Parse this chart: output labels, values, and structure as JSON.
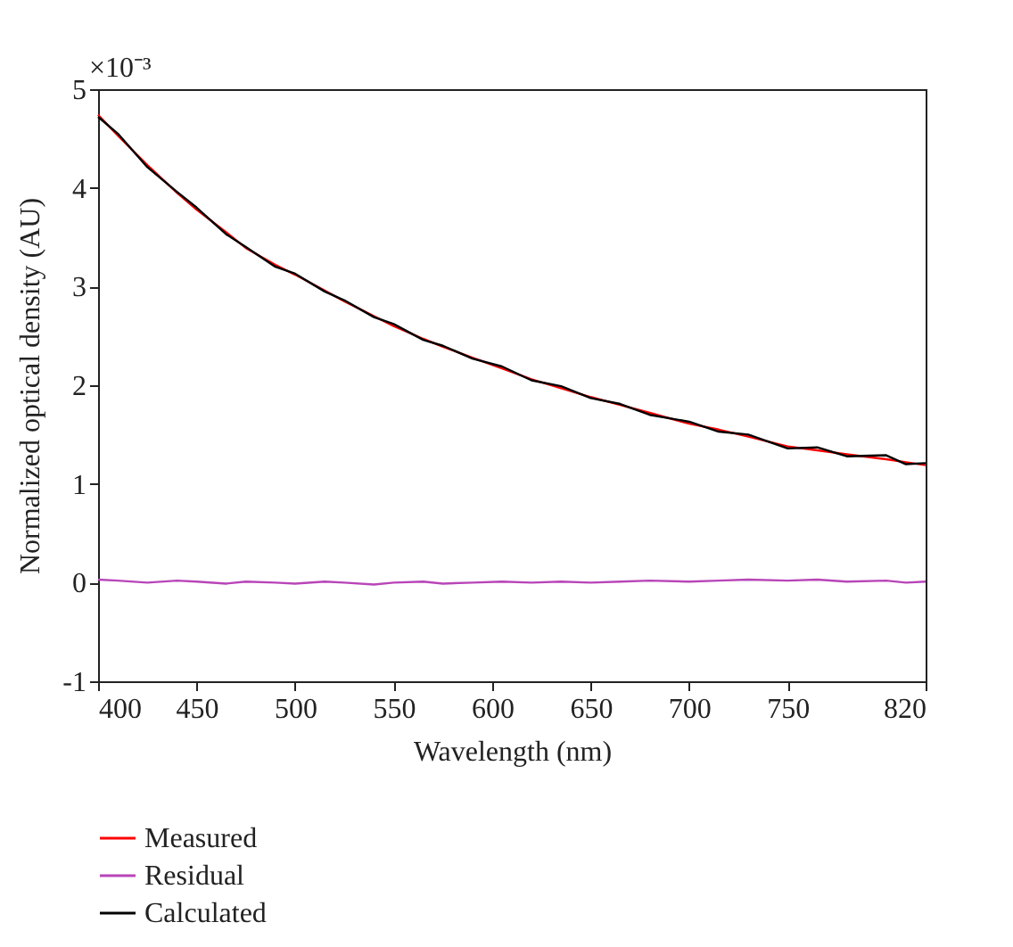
{
  "chart_data": {
    "type": "line",
    "xlabel": "Wavelength (nm)",
    "ylabel": "Normalized optical density (AU)",
    "annotations": [
      "×10⁻³"
    ],
    "x": [
      400,
      410,
      425,
      440,
      450,
      465,
      475,
      490,
      500,
      515,
      525,
      540,
      550,
      565,
      575,
      590,
      605,
      620,
      635,
      650,
      665,
      680,
      700,
      715,
      730,
      750,
      765,
      780,
      800,
      810,
      820
    ],
    "xlim": [
      400,
      820
    ],
    "xticks": [
      400,
      450,
      500,
      550,
      600,
      650,
      700,
      750,
      820
    ],
    "ylim": [
      -1,
      5
    ],
    "yticks": [
      -1,
      0,
      1,
      2,
      3,
      4,
      5
    ],
    "grid": false,
    "legend": "bottom",
    "line_style": "solid",
    "marker": "none",
    "series": [
      {
        "name": "Measured",
        "color": "#ff0000",
        "values": [
          4.74,
          4.53,
          4.23,
          3.95,
          3.78,
          3.55,
          3.39,
          3.22,
          3.12,
          2.96,
          2.85,
          2.7,
          2.6,
          2.47,
          2.39,
          2.28,
          2.17,
          2.06,
          1.97,
          1.88,
          1.8,
          1.72,
          1.61,
          1.55,
          1.48,
          1.38,
          1.34,
          1.3,
          1.25,
          1.22,
          1.19
        ]
      },
      {
        "name": "Residual",
        "color": "#b845b8",
        "values": [
          0.03,
          0.02,
          0.0,
          0.02,
          0.01,
          -0.01,
          0.01,
          0.0,
          -0.01,
          0.01,
          0.0,
          -0.02,
          0.0,
          0.01,
          -0.01,
          0.0,
          0.01,
          0.0,
          0.01,
          0.0,
          0.01,
          0.02,
          0.01,
          0.02,
          0.03,
          0.02,
          0.03,
          0.01,
          0.02,
          0.0,
          0.01
        ]
      },
      {
        "name": "Calculated",
        "color": "#000000",
        "values": [
          4.72,
          4.55,
          4.21,
          3.96,
          3.8,
          3.53,
          3.4,
          3.2,
          3.13,
          2.95,
          2.86,
          2.69,
          2.62,
          2.46,
          2.4,
          2.27,
          2.19,
          2.05,
          1.99,
          1.87,
          1.81,
          1.7,
          1.63,
          1.53,
          1.5,
          1.36,
          1.37,
          1.28,
          1.29,
          1.2,
          1.21
        ]
      }
    ]
  }
}
